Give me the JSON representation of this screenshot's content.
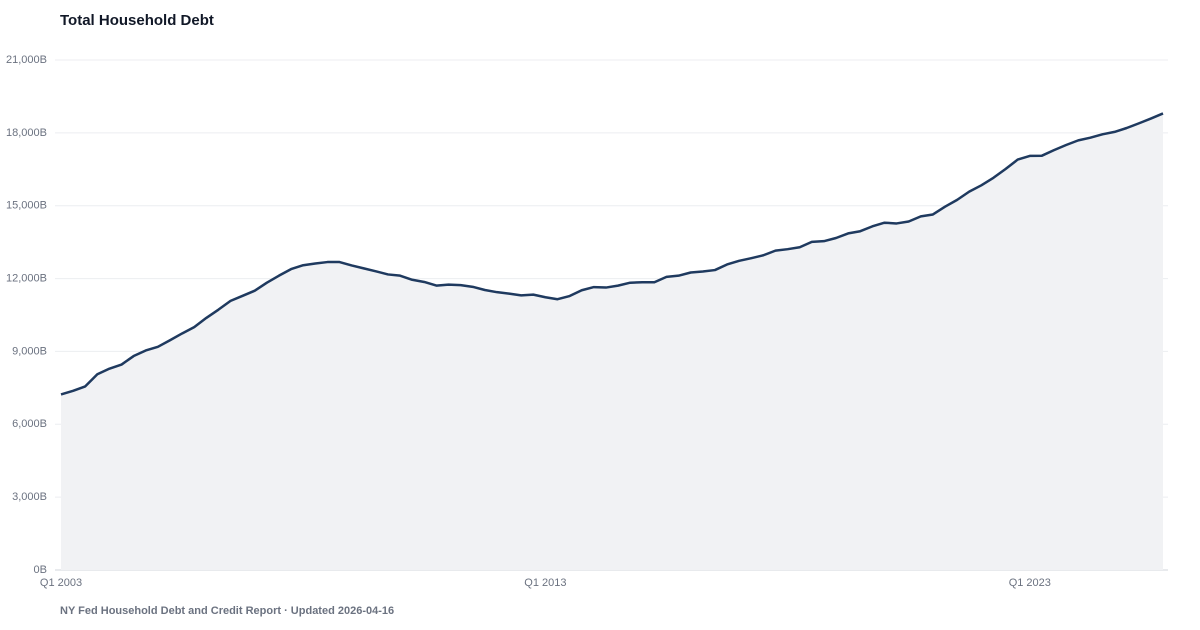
{
  "chart_data": {
    "type": "area",
    "title": "Total Household Debt",
    "footer": "NY Fed Household Debt and Credit Report · Updated 2026-04-16",
    "categories": [
      "Q1 2003",
      null,
      null,
      null,
      null,
      null,
      null,
      null,
      null,
      null,
      null,
      null,
      null,
      null,
      null,
      null,
      null,
      null,
      null,
      null,
      null,
      null,
      null,
      null,
      null,
      null,
      null,
      null,
      null,
      null,
      null,
      null,
      null,
      null,
      null,
      null,
      null,
      null,
      null,
      null,
      "Q1 2013",
      null,
      null,
      null,
      null,
      null,
      null,
      null,
      null,
      null,
      null,
      null,
      null,
      null,
      null,
      null,
      null,
      null,
      null,
      null,
      null,
      null,
      null,
      null,
      null,
      null,
      null,
      null,
      null,
      null,
      null,
      null,
      null,
      null,
      null,
      null,
      null,
      null,
      null,
      null,
      "Q1 2023",
      null,
      null,
      null,
      null,
      null,
      null,
      null,
      null,
      null,
      null,
      null
    ],
    "series": [
      {
        "name": "Total Household Debt",
        "color": "#1f3a5f",
        "fill": "#f1f2f4",
        "values": [
          7230,
          7380,
          7560,
          8060,
          8290,
          8460,
          8810,
          9040,
          9190,
          9460,
          9740,
          10000,
          10380,
          10720,
          11080,
          11290,
          11500,
          11830,
          12120,
          12390,
          12550,
          12620,
          12680,
          12680,
          12540,
          12420,
          12300,
          12170,
          12120,
          11950,
          11860,
          11710,
          11750,
          11730,
          11660,
          11530,
          11440,
          11380,
          11310,
          11340,
          11230,
          11150,
          11280,
          11520,
          11650,
          11630,
          11710,
          11830,
          11850,
          11850,
          12070,
          12120,
          12250,
          12290,
          12350,
          12580,
          12730,
          12840,
          12960,
          13150,
          13210,
          13290,
          13510,
          13540,
          13670,
          13860,
          13950,
          14150,
          14300,
          14270,
          14350,
          14560,
          14640,
          14960,
          15240,
          15580,
          15840,
          16150,
          16510,
          16900,
          17050,
          17060,
          17290,
          17500,
          17690,
          17800,
          17940,
          18040,
          18200,
          18390,
          18590,
          18800
        ]
      }
    ],
    "ylim": [
      0,
      21000
    ],
    "yticks": [
      {
        "value": 0,
        "label": "0B"
      },
      {
        "value": 3000,
        "label": "3,000B"
      },
      {
        "value": 6000,
        "label": "6,000B"
      },
      {
        "value": 9000,
        "label": "9,000B"
      },
      {
        "value": 12000,
        "label": "12,000B"
      },
      {
        "value": 15000,
        "label": "15,000B"
      },
      {
        "value": 18000,
        "label": "18,000B"
      },
      {
        "value": 21000,
        "label": "21,000B"
      }
    ],
    "grid": true
  }
}
